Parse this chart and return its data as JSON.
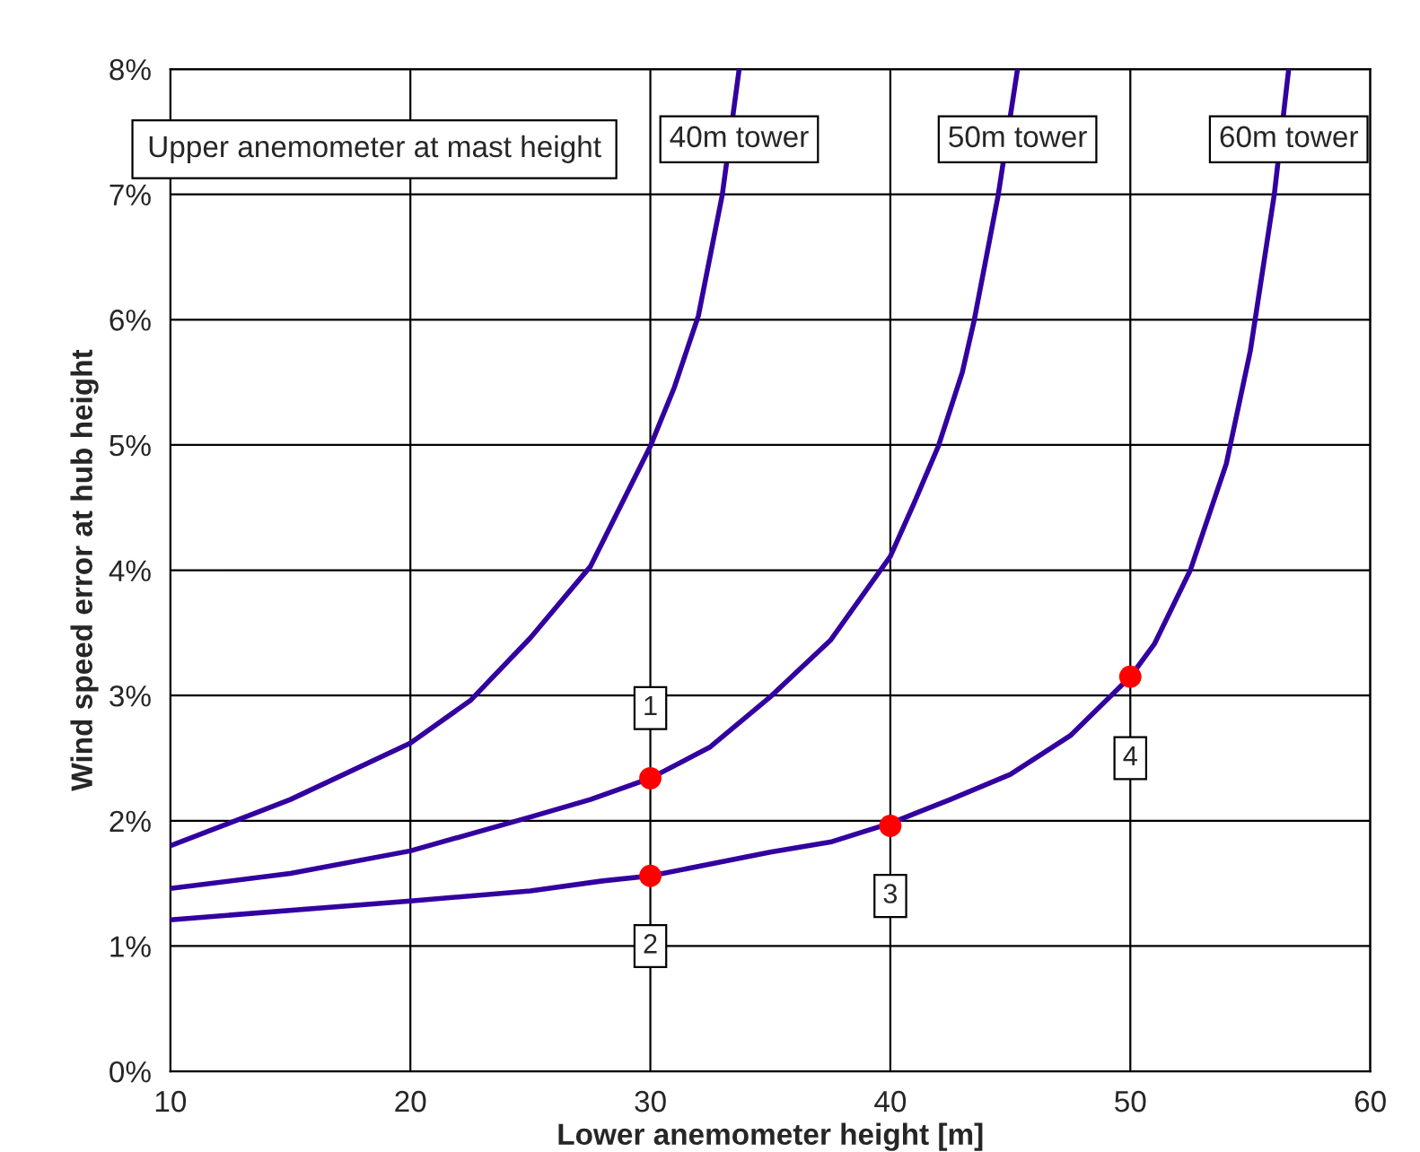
{
  "chart_data": {
    "type": "line",
    "xlabel": "Lower anemometer height [m]",
    "ylabel": "Wind speed error at hub height",
    "xlim": [
      10,
      60
    ],
    "xticks": [
      10,
      20,
      30,
      40,
      50,
      60
    ],
    "ylim": [
      0,
      8
    ],
    "yticks": [
      {
        "value": 0,
        "label": "0%"
      },
      {
        "value": 1,
        "label": "1%"
      },
      {
        "value": 2,
        "label": "2%"
      },
      {
        "value": 3,
        "label": "3%"
      },
      {
        "value": 4,
        "label": "4%"
      },
      {
        "value": 5,
        "label": "5%"
      },
      {
        "value": 6,
        "label": "6%"
      },
      {
        "value": 7,
        "label": "7%"
      },
      {
        "value": 8,
        "label": "8%"
      }
    ],
    "grid": true,
    "marker": "none",
    "line_style": "solid",
    "series": [
      {
        "name": "40m tower",
        "color": "#3300a0",
        "x": [
          10,
          15,
          20,
          22.5,
          25,
          27.5,
          30,
          31,
          32,
          33,
          33.7
        ],
        "values": [
          1.8,
          2.17,
          2.62,
          2.96,
          3.46,
          4.03,
          4.99,
          5.46,
          6.03,
          7.0,
          8.0
        ]
      },
      {
        "name": "50m tower",
        "color": "#3300a0",
        "x": [
          10,
          15,
          20,
          25,
          27.5,
          30,
          32.5,
          35,
          37.5,
          40,
          41,
          42,
          43,
          43.5,
          44.5,
          45.3
        ],
        "values": [
          1.46,
          1.58,
          1.76,
          2.03,
          2.17,
          2.34,
          2.59,
          2.99,
          3.44,
          4.11,
          4.54,
          4.99,
          5.58,
          6.0,
          7.0,
          8.0
        ]
      },
      {
        "name": "60m tower",
        "color": "#3300a0",
        "x": [
          10,
          20,
          25,
          28,
          30,
          35,
          37.5,
          40,
          42.5,
          45,
          47.5,
          50,
          51,
          52.5,
          54,
          55,
          56,
          56.6
        ],
        "values": [
          1.21,
          1.36,
          1.44,
          1.52,
          1.56,
          1.75,
          1.83,
          1.98,
          2.17,
          2.37,
          2.68,
          3.15,
          3.41,
          4.0,
          4.85,
          5.75,
          7.0,
          8.0
        ]
      },
      {
        "type": "scatter",
        "marker": "circle",
        "color": "#ff0000",
        "x": [
          30,
          30,
          40,
          50
        ],
        "values": [
          2.34,
          1.56,
          1.96,
          3.15
        ]
      }
    ],
    "annotations": [
      "Upper anemometer at mast height",
      {
        "text": "1",
        "x": 30,
        "y": 2.9
      },
      {
        "text": "2",
        "x": 30,
        "y": 1.0
      },
      {
        "text": "3",
        "x": 40,
        "y": 1.4
      },
      {
        "text": "4",
        "x": 50,
        "y": 2.5
      }
    ]
  }
}
